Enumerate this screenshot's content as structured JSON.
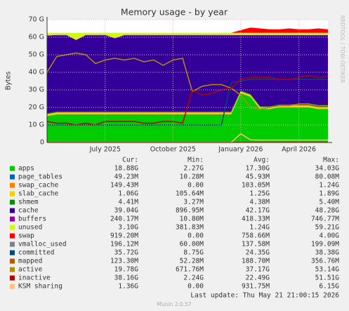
{
  "chart_data": {
    "type": "area",
    "title": "Memory usage - by year",
    "y_label": "Bytes",
    "side_text": "RRDTOOL / TOBI OETIKER",
    "categories": [
      null,
      null,
      null,
      null,
      null,
      null,
      "July 2025",
      null,
      null,
      null,
      null,
      null,
      null,
      "October 2025",
      null,
      null,
      null,
      null,
      null,
      null,
      "January 2026",
      null,
      null,
      null,
      null,
      null,
      "April 2026",
      null,
      null,
      null
    ],
    "ylim": [
      0,
      70
    ],
    "yticks": [
      0,
      {
        "value": 10,
        "label": "10 G"
      },
      {
        "value": 20,
        "label": "20 G"
      },
      {
        "value": 30,
        "label": "30 G"
      },
      {
        "value": 40,
        "label": "40 G"
      },
      {
        "value": 50,
        "label": "50 G"
      },
      {
        "value": 60,
        "label": "60 G"
      },
      {
        "value": 70,
        "label": "70 G"
      }
    ],
    "grid": true,
    "stats_headers": [
      "Cur:",
      "Min:",
      "Avg:",
      "Max:"
    ],
    "series": [
      {
        "name": "apps",
        "color": "#00cc00",
        "style": "area",
        "values": [
          15,
          16,
          16,
          16,
          16,
          16,
          16,
          16,
          16,
          16,
          16,
          16,
          16,
          16,
          16,
          16,
          16,
          16,
          16,
          16,
          28,
          26,
          19,
          19,
          20,
          20,
          20,
          20,
          19,
          19
        ],
        "stats": [
          "18.88G",
          "2.27G",
          "17.30G",
          "34.03G"
        ]
      },
      {
        "name": "page_tables",
        "color": "#0066b3",
        "style": "area",
        "values": [
          0.05,
          0.05,
          0.05,
          0.05,
          0.05,
          0.05,
          0.05,
          0.05,
          0.05,
          0.05,
          0.05,
          0.05,
          0.05,
          0.05,
          0.05,
          0.05,
          0.05,
          0.05,
          0.05,
          0.05,
          0.05,
          0.05,
          0.05,
          0.05,
          0.05,
          0.05,
          0.05,
          0.05,
          0.05,
          0.05
        ],
        "stats": [
          "49.23M",
          "10.28M",
          "45.93M",
          "80.08M"
        ]
      },
      {
        "name": "swap_cache",
        "color": "#ff8000",
        "style": "area",
        "values": [
          0.1,
          0.1,
          0.1,
          0.1,
          0.1,
          0.1,
          0.1,
          0.1,
          0.1,
          0.1,
          0.1,
          0.1,
          0.1,
          0.1,
          0.1,
          0.1,
          0.1,
          0.1,
          0.1,
          0.1,
          0.1,
          0.1,
          0.1,
          0.1,
          0.1,
          0.1,
          0.1,
          0.1,
          0.1,
          0.1
        ],
        "stats": [
          "149.43M",
          "0.00",
          "103.05M",
          "1.24G"
        ]
      },
      {
        "name": "slab_cache",
        "color": "#ffcc00",
        "style": "area",
        "values": [
          1,
          1,
          1,
          1,
          1,
          1,
          1,
          1,
          1,
          1,
          1,
          1,
          1,
          1,
          1,
          1,
          1,
          1,
          1,
          1,
          1,
          1,
          1,
          1,
          1,
          1,
          1,
          1,
          1,
          1
        ],
        "stats": [
          "1.06G",
          "105.64M",
          "1.25G",
          "1.89G"
        ]
      },
      {
        "name": "shmem",
        "color": "#008f00",
        "style": "area",
        "values": [
          0.5,
          0.5,
          0.5,
          0.5,
          0.5,
          0.5,
          0.5,
          0.5,
          0.5,
          0.5,
          0.5,
          0.5,
          0.5,
          0.5,
          0.5,
          0.5,
          0.5,
          0.5,
          0.5,
          0.5,
          0.5,
          0.5,
          0.5,
          0.5,
          0.5,
          0.5,
          0.5,
          0.5,
          0.5,
          0.5
        ],
        "stats": [
          "4.41M",
          "3.27M",
          "4.38M",
          "5.40M"
        ]
      },
      {
        "name": "cache",
        "color": "#330099",
        "style": "area",
        "values": [
          44.15,
          43.45,
          43.45,
          40.65,
          43.45,
          43.45,
          43.45,
          41.65,
          43.45,
          43.45,
          43.45,
          43.45,
          43.45,
          43.45,
          43.45,
          43.45,
          43.45,
          43.45,
          43.45,
          43.45,
          31.45,
          33.45,
          40.45,
          40.45,
          39.45,
          39.45,
          39.45,
          39.45,
          40.45,
          40.45
        ],
        "stats": [
          "39.04G",
          "896.95M",
          "42.17G",
          "48.28G"
        ]
      },
      {
        "name": "buffers",
        "color": "#990099",
        "style": "area",
        "values": [
          0.2,
          0.2,
          0.2,
          0.2,
          0.2,
          0.2,
          0.2,
          0.2,
          0.2,
          0.2,
          0.2,
          0.2,
          0.2,
          0.2,
          0.2,
          0.2,
          0.2,
          0.2,
          0.2,
          0.2,
          0.2,
          0.2,
          0.2,
          0.2,
          0.2,
          0.2,
          0.2,
          0.2,
          0.2,
          0.2
        ],
        "stats": [
          "240.17M",
          "10.80M",
          "418.33M",
          "746.77M"
        ]
      },
      {
        "name": "unused",
        "color": "#ccff00",
        "style": "area",
        "values": [
          1.5,
          1.2,
          1.2,
          4,
          1.2,
          1.2,
          1.2,
          3,
          1.2,
          1.2,
          1.2,
          1.2,
          1.2,
          1.2,
          1.2,
          1.2,
          1.2,
          1.2,
          1.2,
          1.2,
          1.2,
          1.2,
          1.2,
          1.2,
          1.2,
          1.2,
          1.2,
          1.2,
          1.2,
          1.2
        ],
        "stats": [
          "3.10G",
          "381.83M",
          "1.24G",
          "59.21G"
        ]
      },
      {
        "name": "swap",
        "color": "#ff0000",
        "style": "area",
        "values": [
          0,
          0,
          0,
          0,
          0,
          0,
          0,
          0,
          0,
          0,
          0,
          0,
          0,
          0,
          0,
          0,
          0,
          0,
          0,
          0,
          1.5,
          3,
          2.5,
          2,
          2,
          2.5,
          2,
          2,
          2.5,
          2
        ],
        "stats": [
          "919.20M",
          "0.00",
          "758.66M",
          "4.00G"
        ]
      },
      {
        "name": "vmalloc_used",
        "color": "#808080",
        "style": "line",
        "values": [
          0.2,
          0.2,
          0.2,
          0.2,
          0.2,
          0.2,
          0.2,
          0.2,
          0.2,
          0.2,
          0.2,
          0.2,
          0.2,
          0.2,
          0.2,
          0.2,
          0.2,
          0.2,
          0.2,
          0.2,
          0.2,
          0.2,
          0.2,
          0.2,
          0.2,
          0.2,
          0.2,
          0.2,
          0.2,
          0.2
        ],
        "stats": [
          "196.12M",
          "60.00M",
          "137.58M",
          "199.09M"
        ]
      },
      {
        "name": "committed",
        "color": "#00487d",
        "style": "line",
        "values": [
          10,
          10,
          10,
          10,
          10,
          10,
          10,
          10,
          10,
          10,
          10,
          10,
          10,
          10,
          10,
          10,
          10,
          10,
          10,
          34,
          35,
          36,
          36,
          36,
          36,
          36,
          36,
          36,
          36,
          36
        ],
        "stats": [
          "35.72G",
          "8.75G",
          "24.35G",
          "38.38G"
        ]
      },
      {
        "name": "mapped",
        "color": "#b35a00",
        "style": "line",
        "values": [
          0.12,
          0.12,
          0.12,
          0.12,
          0.12,
          0.12,
          0.12,
          0.12,
          0.12,
          0.12,
          0.12,
          0.12,
          0.12,
          0.12,
          0.12,
          0.12,
          0.12,
          0.12,
          0.12,
          0.12,
          0.3,
          0.3,
          0.3,
          0.3,
          0.3,
          0.3,
          0.3,
          0.3,
          0.3,
          0.3
        ],
        "stats": [
          "123.30M",
          "52.28M",
          "188.70M",
          "356.76M"
        ]
      },
      {
        "name": "active",
        "color": "#b38f00",
        "style": "line",
        "values": [
          40,
          49,
          50,
          51,
          50,
          45,
          47,
          48,
          47,
          48,
          46,
          47,
          44,
          47,
          48,
          29,
          32,
          33,
          33,
          31,
          27,
          20,
          19,
          20,
          21,
          21,
          22,
          22,
          21,
          21
        ],
        "stats": [
          "19.78G",
          "671.76M",
          "37.17G",
          "53.14G"
        ]
      },
      {
        "name": "inactive",
        "color": "#b30000",
        "style": "line",
        "values": [
          12,
          11,
          11,
          10,
          11,
          10,
          12,
          12,
          12,
          12,
          11,
          11,
          12,
          12,
          11,
          30,
          27,
          28,
          30,
          31,
          36,
          37,
          37,
          37,
          36,
          36,
          37,
          38,
          37,
          38
        ],
        "stats": [
          "38.16G",
          "2.24G",
          "22.49G",
          "51.51G"
        ]
      },
      {
        "name": "KSM sharing",
        "color": "#ffc080",
        "style": "line",
        "values": [
          0,
          0,
          0,
          0,
          0,
          0,
          0,
          0,
          0,
          0,
          0,
          0,
          0,
          0,
          0,
          0,
          0,
          0,
          0,
          0,
          5,
          1.5,
          1.4,
          1.4,
          1.4,
          1.4,
          1.4,
          1.4,
          1.4,
          1.4
        ],
        "stats": [
          "1.36G",
          "0.00",
          "931.75M",
          "6.15G"
        ]
      }
    ],
    "last_update": "Last update: Thu May 21 21:00:15 2026",
    "version": "Munin 2.0.57"
  }
}
